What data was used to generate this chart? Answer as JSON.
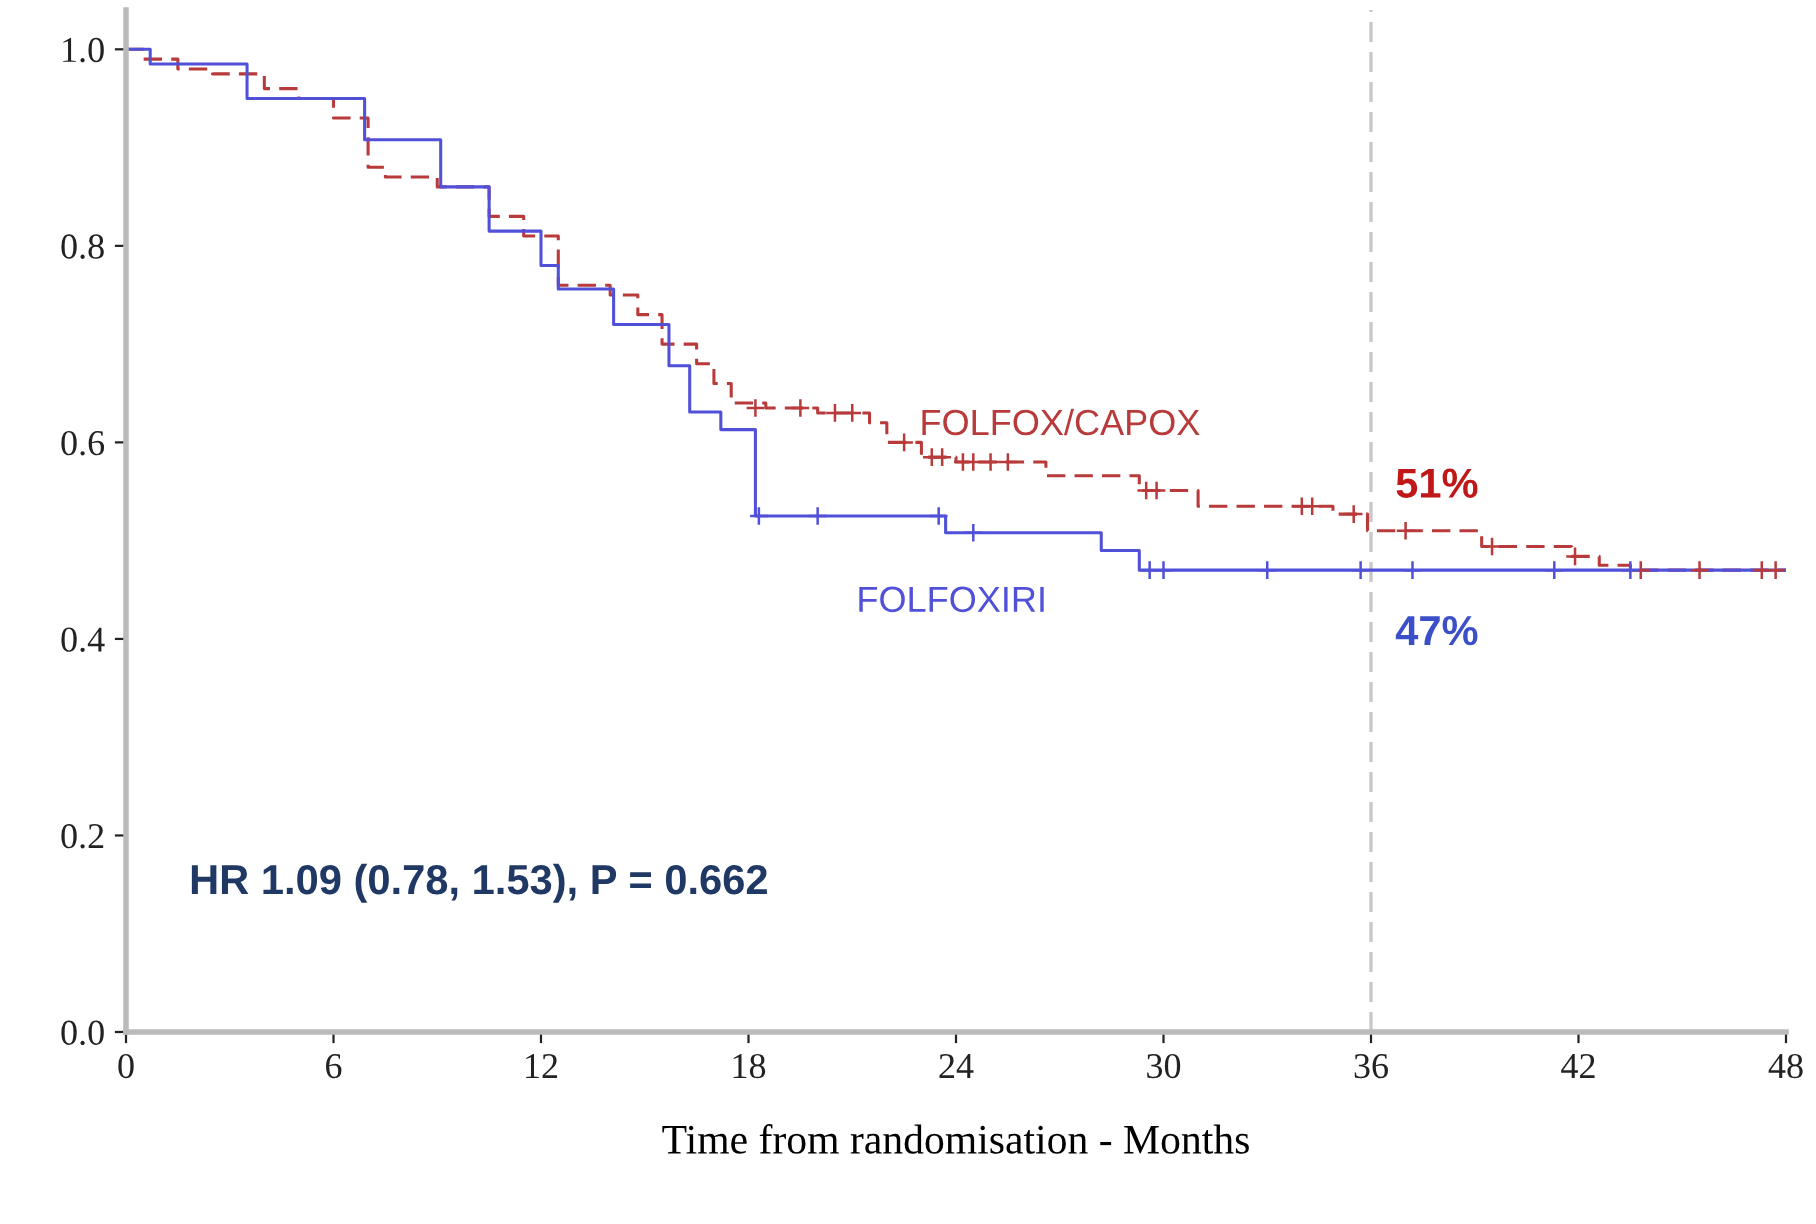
{
  "chart_data": {
    "type": "step",
    "xlabel": "Time from randomisation - Months",
    "xlim": [
      0,
      48
    ],
    "ylim": [
      0,
      1.04
    ],
    "xticks": [
      0,
      6,
      12,
      18,
      24,
      30,
      36,
      42,
      48
    ],
    "yticks": [
      {
        "value": 0,
        "label": "0.0"
      },
      {
        "value": 0.2,
        "label": "0.2"
      },
      {
        "value": 0.4,
        "label": "0.4"
      },
      {
        "value": 0.6,
        "label": "0.6"
      },
      {
        "value": 0.8,
        "label": "0.8"
      },
      {
        "value": 1.0,
        "label": "1.0"
      }
    ],
    "grid": false,
    "legend": false,
    "tick_labels": true,
    "series": [
      {
        "name": "FOLFOX/CAPOX",
        "color": "#b83a3a",
        "line_style": "dashed",
        "marker": "none",
        "x": [
          0,
          0.5,
          1.5,
          2.5,
          4,
          5,
          6,
          7,
          7.5,
          9,
          10.5,
          11.5,
          12.5,
          14,
          14.8,
          15.5,
          16.5,
          17,
          17.5,
          18.5,
          20,
          21.5,
          22,
          23,
          24,
          26.6,
          29.3,
          31,
          34.9,
          35.9,
          39.2,
          41.8,
          42.6,
          43.5,
          48
        ],
        "values": [
          1.0,
          0.99,
          0.98,
          0.975,
          0.96,
          0.95,
          0.93,
          0.88,
          0.87,
          0.86,
          0.83,
          0.81,
          0.76,
          0.75,
          0.73,
          0.7,
          0.68,
          0.66,
          0.64,
          0.635,
          0.63,
          0.62,
          0.6,
          0.585,
          0.58,
          0.566,
          0.551,
          0.535,
          0.527,
          0.51,
          0.494,
          0.484,
          0.475,
          0.47,
          0.47
        ]
      },
      {
        "name": "FOLFOXIRI",
        "color": "#5050d8",
        "line_style": "solid",
        "marker": "none",
        "x": [
          0,
          0.7,
          3.5,
          6.9,
          9.1,
          10.5,
          12,
          12.5,
          14.1,
          15.7,
          16.3,
          17.2,
          18.2,
          23.7,
          28.2,
          29.3,
          48
        ],
        "values": [
          1.0,
          0.985,
          0.95,
          0.908,
          0.86,
          0.815,
          0.78,
          0.756,
          0.72,
          0.678,
          0.631,
          0.613,
          0.525,
          0.508,
          0.49,
          0.47,
          0.47
        ]
      },
      {
        "type": "scatter",
        "color": "#b83a3a",
        "marker": "cross",
        "x": [
          18.2,
          19.5,
          20.5,
          21,
          22.5,
          23.3,
          23.6,
          24.2,
          24.5,
          25,
          25.5,
          29.5,
          29.8,
          34,
          34.3,
          35.5,
          37,
          39.5,
          41.9,
          43.8,
          45.5,
          47.3,
          47.7
        ],
        "values": [
          0.635,
          0.635,
          0.63,
          0.63,
          0.6,
          0.585,
          0.585,
          0.58,
          0.58,
          0.58,
          0.58,
          0.551,
          0.551,
          0.535,
          0.535,
          0.527,
          0.51,
          0.494,
          0.484,
          0.47,
          0.47,
          0.47,
          0.47
        ]
      },
      {
        "type": "scatter",
        "color": "#5050d8",
        "marker": "cross",
        "x": [
          18.3,
          20,
          23.5,
          24.5,
          29.6,
          30,
          33,
          35.7,
          37.2,
          41.3,
          43.5
        ],
        "values": [
          0.525,
          0.525,
          0.525,
          0.508,
          0.47,
          0.47,
          0.47,
          0.47,
          0.47,
          0.47,
          0.47
        ]
      }
    ],
    "ref_lines": [
      {
        "axis": "x",
        "value": 36,
        "color": "#c8c8c8",
        "line_style": "dashed"
      }
    ],
    "annotations": [
      {
        "text": "51%",
        "x": 36,
        "y": 0.51
      },
      {
        "text": "47%",
        "x": 36,
        "y": 0.47
      },
      "HR 1.09 (0.78, 1.53), P = 0.662"
    ]
  }
}
